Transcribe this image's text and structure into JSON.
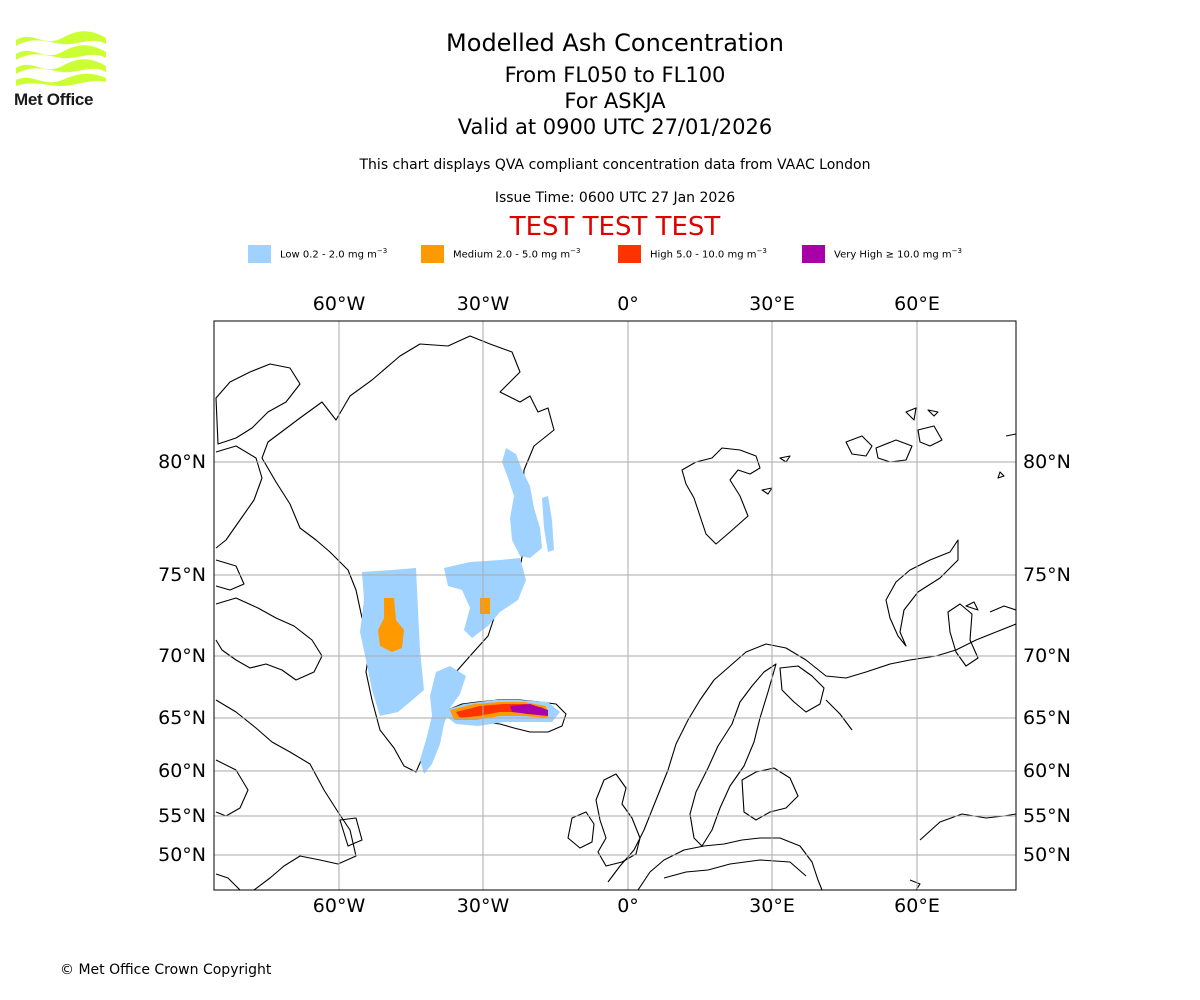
{
  "logo": {
    "text": "Met Office",
    "color": "#ccff33"
  },
  "header": {
    "title": "Modelled Ash Concentration",
    "levels": "From FL050 to FL100",
    "volcano": "For ASKJA",
    "valid": "Valid at 0900 UTC 27/01/2026",
    "description": "This chart displays QVA compliant concentration data from VAAC London",
    "issue_time": "Issue Time: 0600 UTC 27 Jan 2026",
    "test_banner": "TEST TEST TEST"
  },
  "legend": [
    {
      "label": "Low 0.2 - 2.0 mg m",
      "exp": "−3",
      "color": "#a0d2ff"
    },
    {
      "label": "Medium 2.0 - 5.0 mg m",
      "exp": "−3",
      "color": "#ff9900"
    },
    {
      "label": "High 5.0 - 10.0 mg m",
      "exp": "−3",
      "color": "#ff3300"
    },
    {
      "label": "Very High ≥ 10.0 mg m",
      "exp": "−3",
      "color": "#aa00aa"
    }
  ],
  "map": {
    "lon_labels": [
      "60°W",
      "30°W",
      "0°",
      "30°E",
      "60°E"
    ],
    "lat_labels": [
      "80°N",
      "75°N",
      "70°N",
      "65°N",
      "60°N",
      "55°N",
      "50°N"
    ]
  },
  "footer": {
    "copyright": "© Met Office Crown Copyright"
  }
}
